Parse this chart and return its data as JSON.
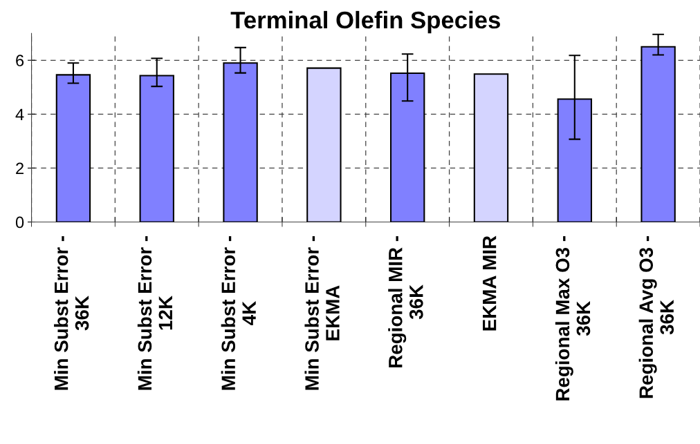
{
  "chart_data": {
    "type": "bar",
    "title": "Terminal Olefin Species",
    "categories": [
      "Min Subst Error -\n36K",
      "Min Subst Error -\n12K",
      "Min Subst Error -\n4K",
      "Min Subst Error -\nEKMA",
      "Regional MIR -\n36K",
      "EKMA MIR",
      "Regional Max O3 -\n36K",
      "Regional Avg O3 -\n36K"
    ],
    "values": [
      5.46,
      5.43,
      5.9,
      5.71,
      5.52,
      5.49,
      4.56,
      6.5
    ],
    "errors": [
      [
        5.15,
        5.9
      ],
      [
        5.03,
        6.07
      ],
      [
        5.53,
        6.47
      ],
      null,
      [
        4.49,
        6.23
      ],
      null,
      [
        3.07,
        6.18
      ],
      [
        6.2,
        6.96
      ]
    ],
    "colors": [
      "#8080ff",
      "#8080ff",
      "#8080ff",
      "#d4d4ff",
      "#8080ff",
      "#d4d4ff",
      "#8080ff",
      "#8080ff"
    ],
    "ylim": [
      0,
      7
    ],
    "yticks": [
      0,
      2,
      4,
      6
    ],
    "grid": true
  }
}
